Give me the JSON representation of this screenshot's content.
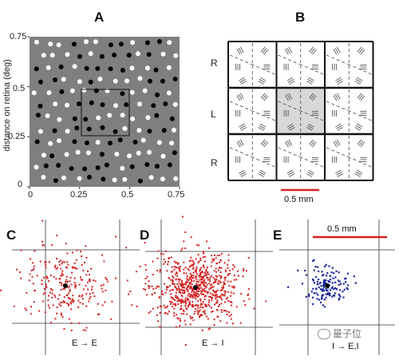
{
  "panel_labels": {
    "a": "A",
    "b": "B",
    "c": "C",
    "d": "D",
    "e": "E"
  },
  "panel_a": {
    "y_axis_label": "distance on retina (deg)",
    "x_ticks": [
      "0",
      "0.25",
      "0.5",
      "0.75"
    ],
    "y_ticks": [
      "0.75",
      "0.5",
      "0.25",
      "0"
    ],
    "background_color": "#7f7f7f"
  },
  "panel_b": {
    "row_labels": [
      "R",
      "L",
      "R"
    ],
    "scale_bar_label": "0.5 mm",
    "scale_bar_color": "#d62020",
    "highlight_color": "#d8d8d8"
  },
  "panel_c": {
    "label": "E → E",
    "dot_color": "#d42222"
  },
  "panel_d": {
    "label": "E → I",
    "dot_color": "#d42222"
  },
  "panel_e": {
    "label": "I → E,I",
    "dot_color": "#1f2a9e",
    "scale_bar_label": "0.5 mm",
    "scale_bar_color": "#d62020"
  },
  "watermark": {
    "text": "量子位",
    "icon": "wechat-icon"
  }
}
